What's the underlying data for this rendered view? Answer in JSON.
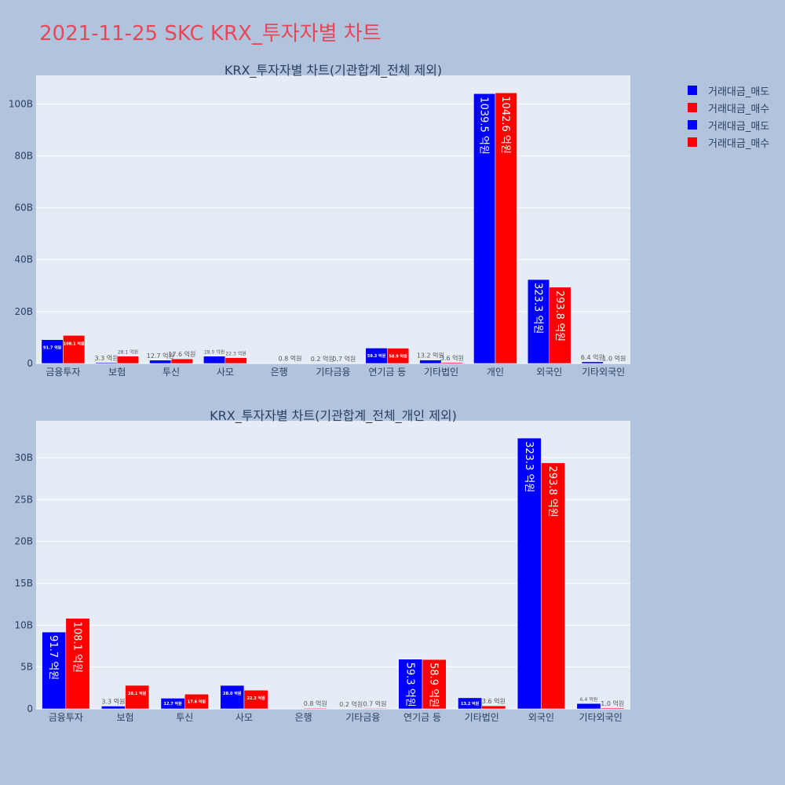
{
  "title": "2021-11-25 SKC KRX_투자자별 차트",
  "colors": {
    "sell": "#0000ff",
    "buy": "#ff0000",
    "plot_bg": "#e5ecf6",
    "page_bg": "#b0c4de"
  },
  "legend": [
    {
      "label": "거래대금_매도",
      "color": "#0000ff"
    },
    {
      "label": "거래대금_매수",
      "color": "#ff0000"
    },
    {
      "label": "거래대금_매도",
      "color": "#0000ff"
    },
    {
      "label": "거래대금_매수",
      "color": "#ff0000"
    }
  ],
  "chart_data": [
    {
      "type": "bar",
      "title": "KRX_투자자별 차트(기관합계_전체 제외)",
      "categories": [
        "금융투자",
        "보험",
        "투신",
        "사모",
        "은행",
        "기타금융",
        "연기금 등",
        "기타법인",
        "개인",
        "외국인",
        "기타외국인"
      ],
      "series": [
        {
          "name": "거래대금_매도",
          "values": [
            9.17,
            0.33,
            1.27,
            2.8,
            0.0,
            0.02,
            5.93,
            1.32,
            103.95,
            32.33,
            0.64
          ],
          "labels": [
            "91.7 억원",
            "3.3 억원",
            "12.7 억원",
            "28.0 억원",
            "",
            "0.2 억원",
            "59.3 억원",
            "13.2 억원",
            "1039.5 억원",
            "323.3 억원",
            "6.4 억원"
          ]
        },
        {
          "name": "거래대금_매수",
          "values": [
            10.81,
            2.81,
            1.76,
            2.23,
            0.08,
            0.07,
            5.89,
            0.36,
            104.26,
            29.38,
            0.1
          ],
          "labels": [
            "108.1 억원",
            "28.1 억원",
            "17.6 억원",
            "22.3 억원",
            "0.8 억원",
            "0.7 억원",
            "58.9 억원",
            "3.6 억원",
            "1042.6 억원",
            "293.8 억원",
            "1.0 억원"
          ]
        }
      ],
      "ylim": [
        0,
        111
      ],
      "yticks": [
        0,
        20,
        40,
        60,
        80,
        100
      ],
      "ytick_labels": [
        "0",
        "20B",
        "40B",
        "60B",
        "80B",
        "100B"
      ],
      "grid": true
    },
    {
      "type": "bar",
      "title": "KRX_투자자별 차트(기관합계_전체_개인 제외)",
      "categories": [
        "금융투자",
        "보험",
        "투신",
        "사모",
        "은행",
        "기타금융",
        "연기금 등",
        "기타법인",
        "외국인",
        "기타외국인"
      ],
      "series": [
        {
          "name": "거래대금_매도",
          "values": [
            9.17,
            0.33,
            1.27,
            2.8,
            0.0,
            0.02,
            5.93,
            1.32,
            32.33,
            0.64
          ],
          "labels": [
            "91.7 억원",
            "3.3 억원",
            "12.7 억원",
            "28.0 억원",
            "",
            "0.2 억원",
            "59.3 억원",
            "13.2 억원",
            "323.3 억원",
            "6.4 억원"
          ]
        },
        {
          "name": "거래대금_매수",
          "values": [
            10.81,
            2.81,
            1.76,
            2.23,
            0.08,
            0.07,
            5.89,
            0.36,
            29.38,
            0.1
          ],
          "labels": [
            "108.1 억원",
            "28.1 억원",
            "17.6 억원",
            "22.3 억원",
            "0.8 억원",
            "0.7 억원",
            "58.9 억원",
            "3.6 억원",
            "293.8 억원",
            "1.0 억원"
          ]
        }
      ],
      "ylim": [
        0,
        34.4
      ],
      "yticks": [
        0,
        5,
        10,
        15,
        20,
        25,
        30
      ],
      "ytick_labels": [
        "0",
        "5B",
        "10B",
        "15B",
        "20B",
        "25B",
        "30B"
      ],
      "grid": true
    }
  ]
}
